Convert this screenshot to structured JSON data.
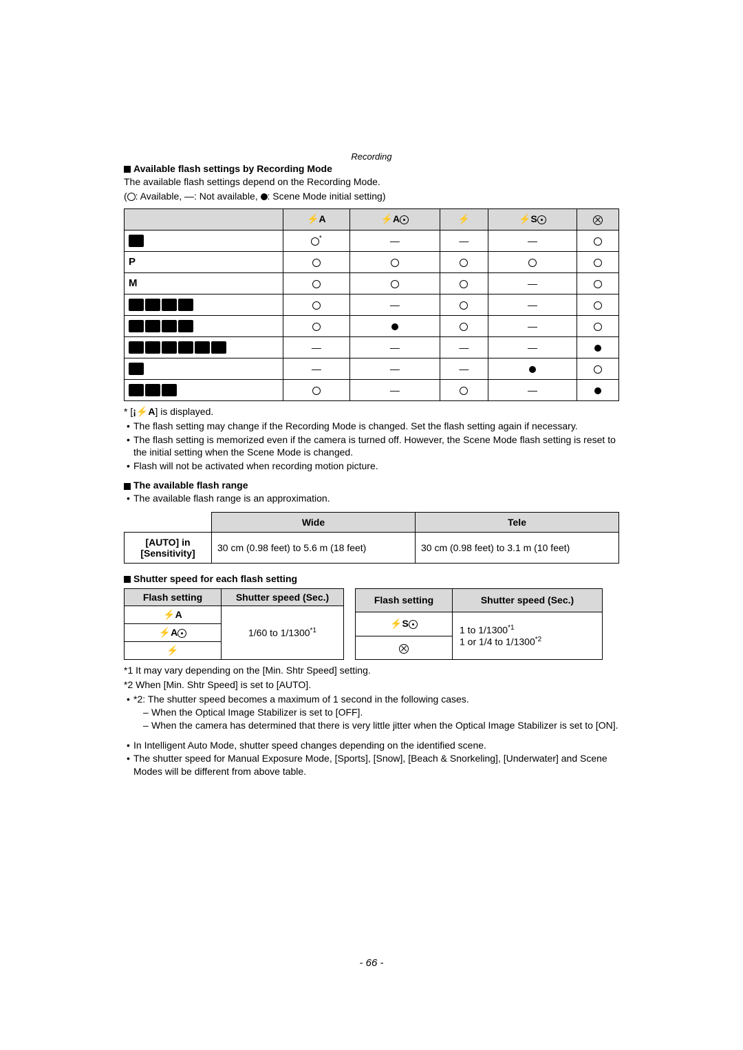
{
  "header_italic": "Recording",
  "section1_title": "Available flash settings by Recording Mode",
  "section1_intro": "The available flash settings depend on the Recording Mode.",
  "legend_prefix": "(",
  "legend_available": ": Available, —: Not available, ",
  "legend_initial": ": Scene Mode initial setting)",
  "flash_table": {
    "headers": [
      "",
      "⚡A",
      "⚡A◎",
      "⚡",
      "⚡S◎",
      "⊘"
    ],
    "row1_mark_sup": "*",
    "rows": [
      {
        "type": "icon",
        "count": 1,
        "cells": [
          "open_sup",
          "—",
          "—",
          "—",
          "open"
        ]
      },
      {
        "type": "text",
        "label": "P",
        "cells": [
          "open",
          "open",
          "open",
          "open",
          "open"
        ]
      },
      {
        "type": "text",
        "label": "M",
        "cells": [
          "open",
          "open",
          "open",
          "—",
          "open"
        ]
      },
      {
        "type": "icon",
        "count": 4,
        "cells": [
          "open",
          "—",
          "open",
          "—",
          "open"
        ]
      },
      {
        "type": "icon",
        "count": 4,
        "cells": [
          "open",
          "filled",
          "open",
          "—",
          "open"
        ]
      },
      {
        "type": "icon",
        "count": 6,
        "cells": [
          "—",
          "—",
          "—",
          "—",
          "filled"
        ]
      },
      {
        "type": "icon",
        "count": 1,
        "cells": [
          "—",
          "—",
          "—",
          "filled",
          "open"
        ]
      },
      {
        "type": "icon",
        "count": 3,
        "cells": [
          "open",
          "—",
          "open",
          "—",
          "filled"
        ]
      }
    ]
  },
  "note_displayed_prefix": "* [",
  "note_displayed_mid": "] is displayed.",
  "bullets1": [
    "The flash setting may change if the Recording Mode is changed. Set the flash setting again if necessary.",
    "The flash setting is memorized even if the camera is turned off. However, the Scene Mode flash setting is reset to the initial setting when the Scene Mode is changed.",
    "Flash will not be activated when recording motion picture."
  ],
  "section2_title": "The available flash range",
  "section2_intro": "The available flash range is an approximation.",
  "range_table": {
    "col1": "Wide",
    "col2": "Tele",
    "row_label_1": "[AUTO] in",
    "row_label_2": "[Sensitivity]",
    "wide": "30 cm (0.98 feet) to 5.6 m (18 feet)",
    "tele": "30 cm (0.98 feet) to 3.1 m (10 feet)"
  },
  "section3_title": "Shutter speed for each flash setting",
  "shutter_left": {
    "h1": "Flash setting",
    "h2": "Shutter speed (Sec.)",
    "rows_icons": [
      "⚡A",
      "⚡A◎",
      "⚡"
    ],
    "speed_text": "1/60 to 1/1300",
    "speed_sup": "*1"
  },
  "shutter_right": {
    "h1": "Flash setting",
    "h2": "Shutter speed (Sec.)",
    "row1_icon": "⚡S◎",
    "row2_icon": "⊘",
    "line1": "1 to 1/1300",
    "line1_sup": "*1",
    "line2": "1 or 1/4 to 1/1300",
    "line2_sup": "*2"
  },
  "footnote1": "*1 It may vary depending on the [Min. Shtr Speed] setting.",
  "footnote2": "*2 When [Min. Shtr Speed] is set to [AUTO].",
  "bullets2_lead": "*2: The shutter speed becomes a maximum of 1 second in the following cases.",
  "bullets2_sub": [
    "When the Optical Image Stabilizer is set to [OFF].",
    "When the camera has determined that there is very little jitter when the Optical Image Stabilizer is set to [ON]."
  ],
  "bullets3": [
    "In Intelligent Auto Mode, shutter speed changes depending on the identified scene.",
    "The shutter speed for Manual Exposure Mode, [Sports], [Snow], [Beach & Snorkeling], [Underwater] and Scene Modes will be different from above table."
  ],
  "page_number": "- 66 -"
}
